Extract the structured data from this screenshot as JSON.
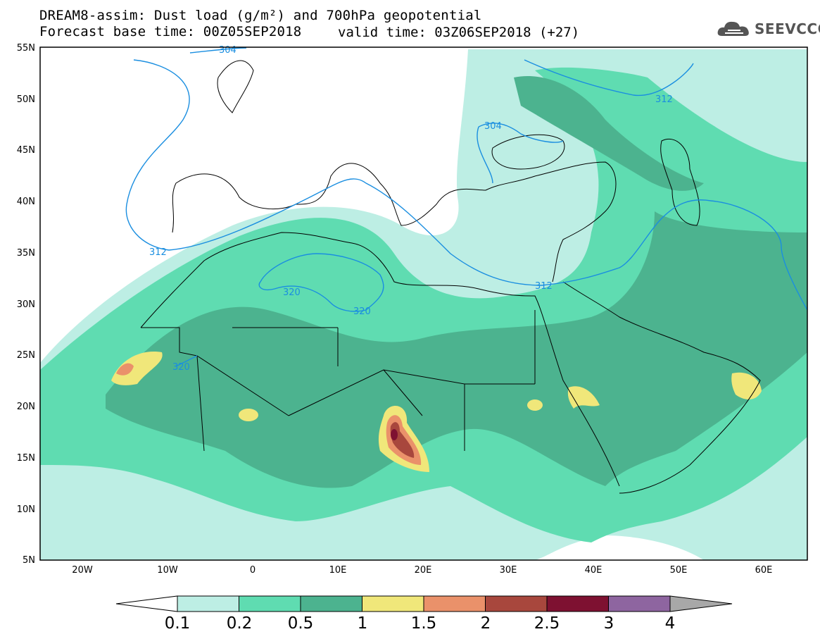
{
  "header": {
    "title_line1": "DREAM8-assim: Dust load (g/m²) and 700hPa geopotential",
    "title_line2": "Forecast base time: 00Z05SEP2018",
    "valid_time": "valid time: 03Z06SEP2018 (+27)",
    "logo_text": "SEEVCCC",
    "logo_icon": "cloud-icon"
  },
  "map": {
    "lat_labels": [
      "55N",
      "50N",
      "45N",
      "40N",
      "35N",
      "30N",
      "25N",
      "20N",
      "15N",
      "10N",
      "5N"
    ],
    "lon_labels": [
      "20W",
      "10W",
      "0",
      "10E",
      "20E",
      "30E",
      "40E",
      "50E",
      "60E"
    ],
    "lon_range": [
      -25,
      65
    ],
    "lat_range": [
      5,
      55
    ],
    "contour_labels": [
      "304",
      "304",
      "312",
      "312",
      "312",
      "320",
      "320",
      "320"
    ],
    "contour_color": "#1a8ee0"
  },
  "colorbar": {
    "ticks": [
      "0.1",
      "0.2",
      "0.5",
      "1",
      "1.5",
      "2",
      "2.5",
      "3",
      "4"
    ],
    "colors": [
      "#bdeee4",
      "#5fdcb1",
      "#4cb38f",
      "#f0e77a",
      "#ea916a",
      "#a8473d",
      "#7e1131",
      "#8e65a0",
      "#a8a8a8"
    ]
  }
}
